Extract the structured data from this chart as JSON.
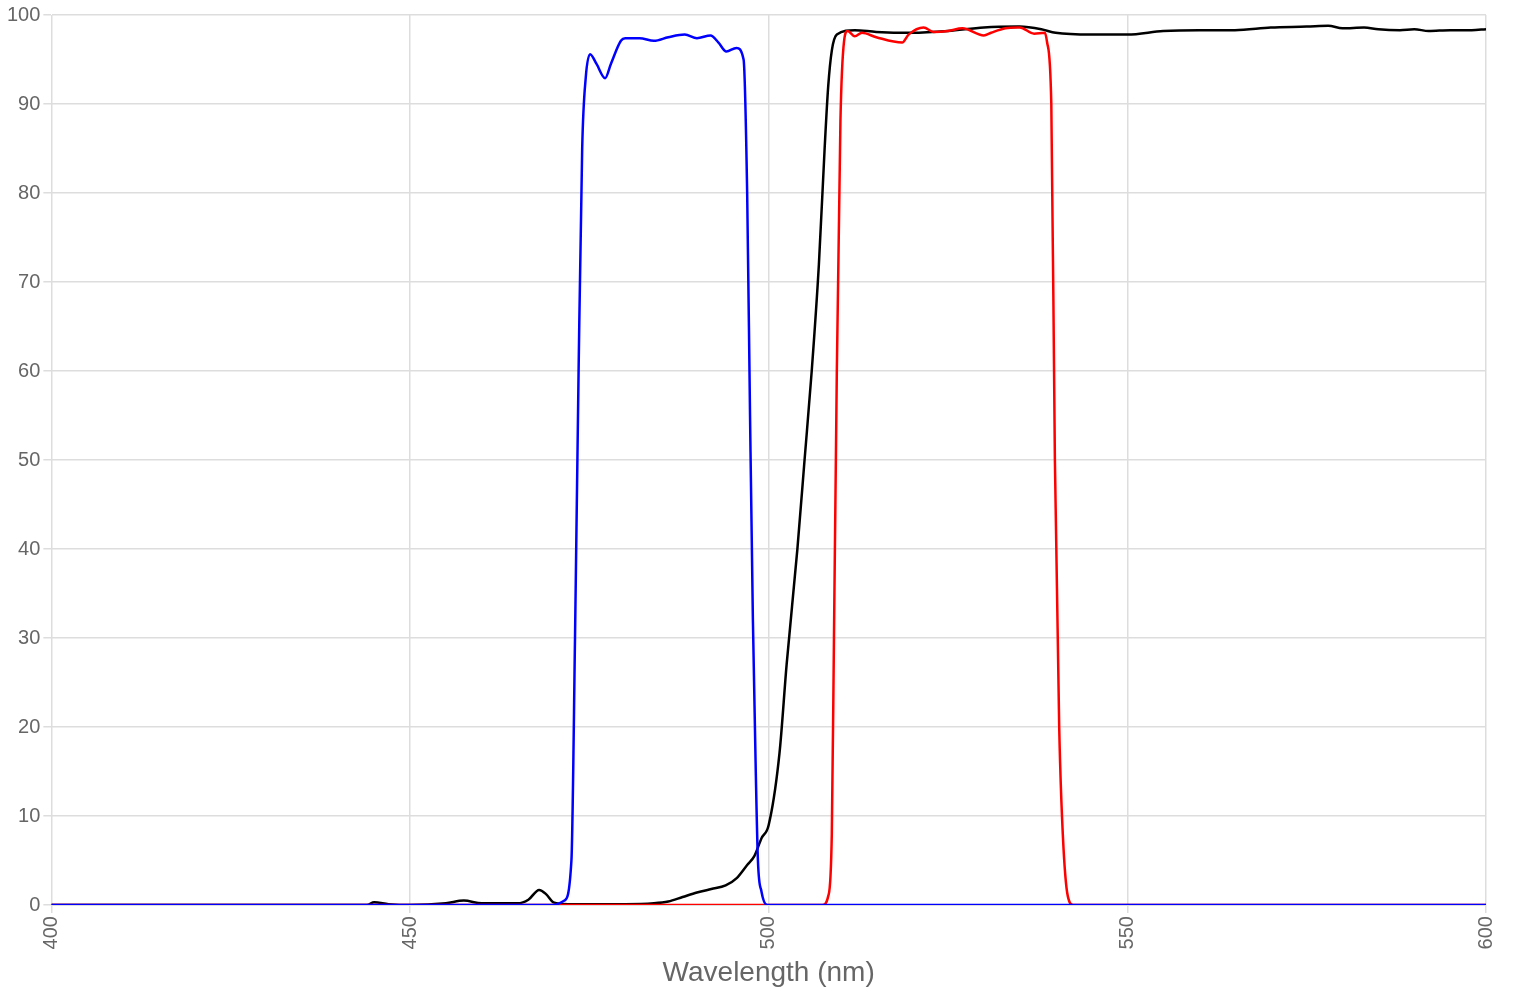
{
  "chart_data": {
    "type": "line",
    "xlabel": "Wavelength (nm)",
    "xlim": [
      400,
      600
    ],
    "xticks": [
      400,
      450,
      500,
      550,
      600
    ],
    "ylim": [
      0,
      100
    ],
    "yticks": [
      0,
      10,
      20,
      30,
      40,
      50,
      60,
      70,
      80,
      90,
      100
    ],
    "grid": true,
    "legend": false,
    "marker": "none",
    "line_style": "solid",
    "series": [
      {
        "color": "#000000",
        "x": [
          400,
          444,
          445,
          447,
          450,
          455,
          457.5,
          460,
          465,
          466.5,
          468,
          469,
          470,
          472,
          480,
          484,
          486,
          488,
          490,
          492,
          494,
          495.5,
          497,
          498,
          499,
          500,
          501.5,
          502.5,
          504,
          505,
          506,
          507,
          507.8,
          508.3,
          508.8,
          509.5,
          512,
          515,
          520,
          525,
          530,
          535,
          538,
          540,
          545,
          550,
          555,
          560,
          565,
          570,
          575,
          578,
          580,
          583,
          585,
          588,
          590,
          592,
          595,
          598,
          600
        ],
        "values": [
          0,
          0,
          0.3,
          0.1,
          0,
          0.2,
          0.5,
          0.2,
          0.2,
          0.6,
          1.7,
          1.2,
          0.3,
          0.1,
          0.1,
          0.2,
          0.4,
          0.9,
          1.4,
          1.8,
          2.2,
          3,
          4.5,
          5.5,
          7.5,
          9,
          17,
          27,
          40,
          50,
          60,
          72,
          85,
          92,
          96,
          97.8,
          98.3,
          98.1,
          98,
          98.2,
          98.6,
          98.7,
          98.4,
          98,
          97.8,
          97.8,
          98.2,
          98.3,
          98.3,
          98.6,
          98.7,
          98.8,
          98.5,
          98.6,
          98.4,
          98.3,
          98.4,
          98.2,
          98.3,
          98.3,
          98.4
        ]
      },
      {
        "color": "#ff0000",
        "x": [
          400,
          507.5,
          508.3,
          508.8,
          509.1,
          509.5,
          510,
          510.5,
          511,
          512,
          513,
          515,
          518.6,
          519.5,
          521.6,
          523,
          525,
          527,
          530,
          531,
          533,
          535,
          537,
          538.5,
          538.8,
          539.4,
          539.9,
          540.5,
          541,
          541.7,
          542.5,
          600
        ],
        "values": [
          0,
          0,
          1,
          8,
          30,
          60,
          88,
          97,
          98.2,
          97.6,
          98,
          97.5,
          96.9,
          97.8,
          98.6,
          98.1,
          98.2,
          98.5,
          97.7,
          98,
          98.5,
          98.6,
          97.9,
          98,
          97,
          90,
          50,
          20,
          8,
          1,
          0,
          0
        ]
      },
      {
        "color": "#0000ff",
        "x": [
          400,
          470,
          471.5,
          472.5,
          473,
          473.5,
          474,
          474.5,
          475.1,
          476,
          477.2,
          478,
          479.4,
          480,
          482,
          484,
          486,
          488.3,
          490,
          491.9,
          493,
          494.1,
          495.5,
          496.5,
          497,
          497.4,
          497.8,
          498.2,
          498.5,
          499,
          499.8,
          600
        ],
        "values": [
          0,
          0,
          0.5,
          5,
          30,
          60,
          85,
          93,
          95.6,
          94.5,
          92.9,
          94.5,
          97.1,
          97.4,
          97.4,
          97.1,
          97.5,
          97.8,
          97.4,
          97.7,
          96.9,
          95.9,
          96.3,
          95,
          80,
          55,
          32,
          15,
          5,
          1.5,
          0,
          0
        ]
      }
    ]
  }
}
